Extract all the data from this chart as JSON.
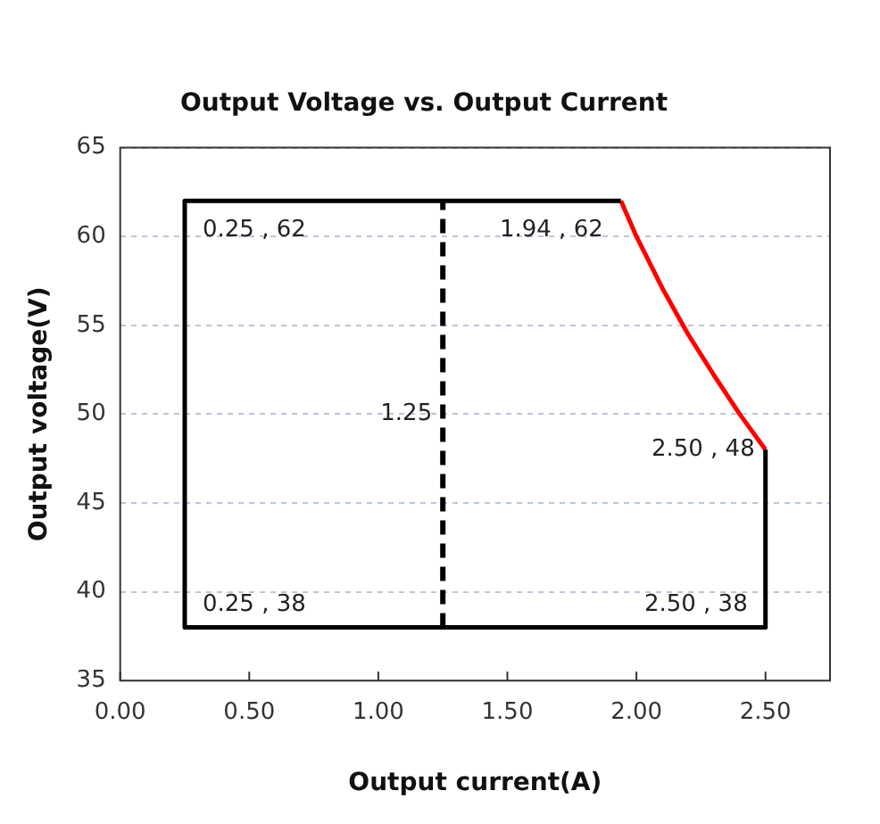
{
  "chart_data": {
    "type": "line",
    "title": "Output Voltage vs. Output Current",
    "xlabel": "Output current(A)",
    "ylabel": "Output voltage(V)",
    "xlim": [
      0,
      2.75
    ],
    "xticks": [
      {
        "value": 0,
        "label": "0.00"
      },
      {
        "value": 0.5,
        "label": "0.50"
      },
      {
        "value": 1,
        "label": "1.00"
      },
      {
        "value": 1.5,
        "label": "1.50"
      },
      {
        "value": 2,
        "label": "2.00"
      },
      {
        "value": 2.5,
        "label": "2.50"
      }
    ],
    "ylim": [
      35,
      65
    ],
    "yticks": [
      35,
      40,
      45,
      50,
      55,
      60,
      65
    ],
    "grid": "y",
    "legend": false,
    "marker": "none",
    "series": [
      {
        "color": "#000000",
        "x": [
          1.94,
          0.25,
          0.25,
          2.5,
          2.5
        ],
        "values": [
          62,
          62,
          38,
          38,
          48
        ],
        "line_style": "solid"
      },
      {
        "color": "#ff0000",
        "x": [
          1.94,
          2.0,
          2.1,
          2.2,
          2.3,
          2.4,
          2.5
        ],
        "values": [
          62,
          60,
          57.1,
          54.5,
          52.2,
          50,
          48
        ],
        "line_style": "solid"
      },
      {
        "color": "#000000",
        "x": [
          1.25,
          1.25
        ],
        "values": [
          38,
          62
        ],
        "line_style": "dashed"
      }
    ],
    "annotations": [
      {
        "text": "0.25 , 62",
        "x": 0.25,
        "y": 62
      },
      {
        "text": "1.94 , 62",
        "x": 1.94,
        "y": 62
      },
      {
        "text": "1.25",
        "x": 1.25,
        "y": 50
      },
      {
        "text": "2.50 , 48",
        "x": 2.5,
        "y": 48
      },
      {
        "text": "0.25 , 38",
        "x": 0.25,
        "y": 38
      },
      {
        "text": "2.50 , 38",
        "x": 2.5,
        "y": 38
      }
    ]
  }
}
